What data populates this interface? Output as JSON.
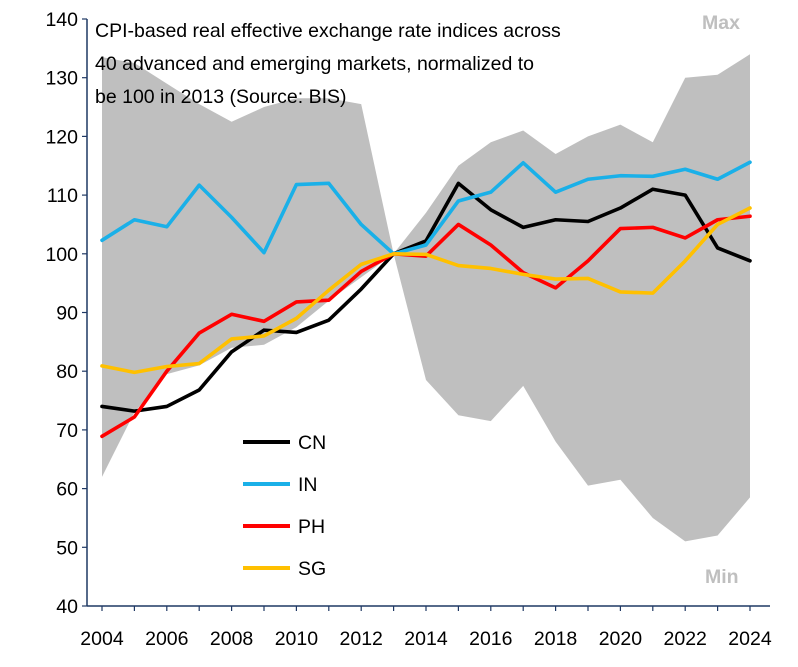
{
  "chart_data": {
    "type": "line",
    "title": "CPI-based real effective exchange rate indices across 40 advanced and emerging markets, normalized to be 100 in 2013 (Source: BIS)",
    "title_lines": [
      "CPI-based real effective exchange rate indices across",
      "40 advanced and emerging markets, normalized to",
      "be 100 in 2013 (Source: BIS)"
    ],
    "xlabel": "",
    "ylabel": "",
    "x": [
      2004,
      2005,
      2006,
      2007,
      2008,
      2009,
      2010,
      2011,
      2012,
      2013,
      2014,
      2015,
      2016,
      2017,
      2018,
      2019,
      2020,
      2021,
      2022,
      2023,
      2024
    ],
    "xlim": [
      2004,
      2024
    ],
    "ylim": [
      40,
      140
    ],
    "x_ticks": [
      2004,
      2006,
      2008,
      2010,
      2012,
      2014,
      2016,
      2018,
      2020,
      2022,
      2024
    ],
    "x_tick_labels": [
      "2004",
      "2006",
      "2008",
      "2010",
      "2012",
      "2014",
      "2016",
      "2018",
      "2020",
      "2022",
      "2024"
    ],
    "y_ticks": [
      40,
      50,
      60,
      70,
      80,
      90,
      100,
      110,
      120,
      130,
      140
    ],
    "y_tick_labels": [
      "40",
      "50",
      "60",
      "70",
      "80",
      "90",
      "100",
      "110",
      "120",
      "130",
      "140"
    ],
    "grid": false,
    "band": {
      "name": "Min-Max range",
      "max_label": "Max",
      "min_label": "Min",
      "color": "#bfbfbf",
      "max": [
        133.5,
        132.5,
        129,
        125.5,
        122.5,
        125,
        126.5,
        126.5,
        125.5,
        100,
        107,
        115,
        119,
        121,
        117,
        120,
        122,
        119,
        130,
        130.5,
        134
      ],
      "min": [
        62,
        73,
        79.5,
        81,
        84,
        84.5,
        87.5,
        92,
        96,
        100,
        78.5,
        72.5,
        71.5,
        77.5,
        68,
        60.5,
        61.5,
        55,
        51,
        52,
        58.5
      ]
    },
    "series": [
      {
        "name": "CN",
        "color": "#000000",
        "values": [
          74,
          73.2,
          74,
          76.8,
          83.3,
          87,
          86.6,
          88.7,
          94,
          100,
          102.2,
          112,
          107.5,
          104.5,
          105.8,
          105.5,
          107.8,
          111,
          110,
          101,
          98.8
        ]
      },
      {
        "name": "IN",
        "color": "#1ab0e8",
        "values": [
          102.3,
          105.8,
          104.6,
          111.7,
          106.2,
          100.2,
          111.8,
          112,
          105,
          100,
          101.5,
          109,
          110.5,
          115.5,
          110.5,
          112.7,
          113.3,
          113.2,
          114.4,
          112.7,
          115.6
        ]
      },
      {
        "name": "PH",
        "color": "#ff0000",
        "values": [
          68.9,
          72.2,
          80,
          86.5,
          89.7,
          88.5,
          91.8,
          92.1,
          97,
          100,
          99.6,
          105,
          101.5,
          96.8,
          94.2,
          98.8,
          104.3,
          104.5,
          102.7,
          105.8,
          106.4
        ]
      },
      {
        "name": "SG",
        "color": "#ffc000",
        "values": [
          80.9,
          79.8,
          80.8,
          81.3,
          85.5,
          86,
          89,
          93.8,
          98.2,
          100,
          99.9,
          98,
          97.5,
          96.5,
          95.7,
          95.8,
          93.5,
          93.3,
          98.8,
          105,
          107.8
        ]
      }
    ],
    "legend": {
      "placement": "lower-left",
      "entries": [
        "CN",
        "IN",
        "PH",
        "SG"
      ]
    },
    "axis_color": "#1f3864"
  }
}
